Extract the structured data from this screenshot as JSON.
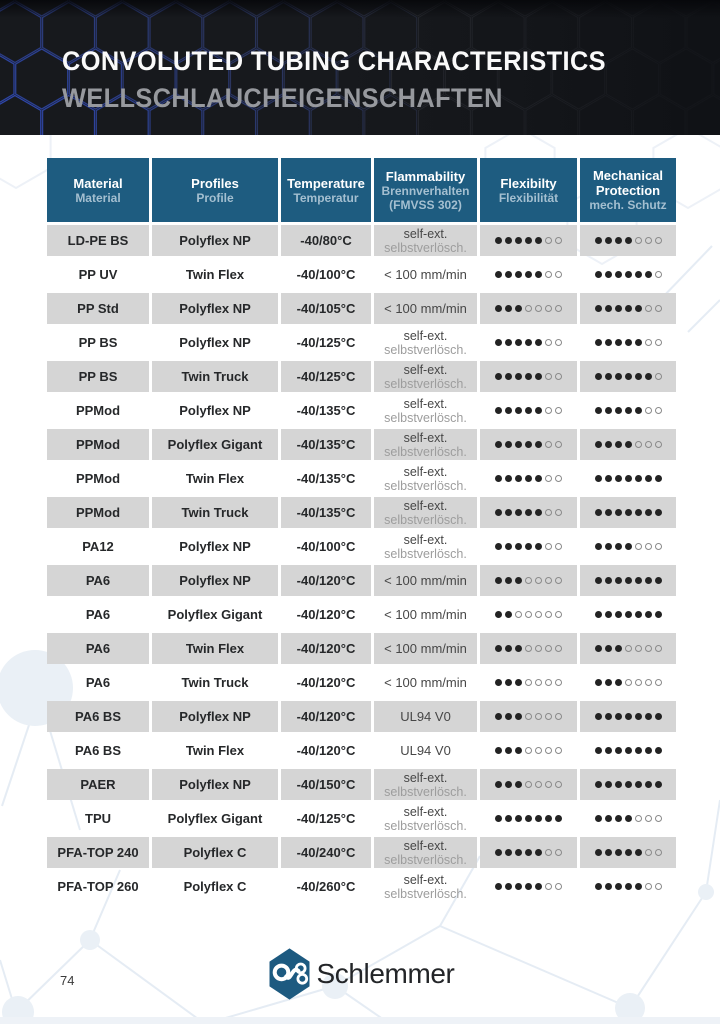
{
  "banner": {
    "title_en": "CONVOLUTED TUBING CHARACTERISTICS",
    "title_de": "WELLSCHLAUCHEIGENSCHAFTEN"
  },
  "table": {
    "columns": [
      {
        "id": "material",
        "top": [
          "Material"
        ],
        "bottom": [
          "Material"
        ]
      },
      {
        "id": "profiles",
        "top": [
          "Profiles"
        ],
        "bottom": [
          "Profile"
        ]
      },
      {
        "id": "temperature",
        "top": [
          "Temperature"
        ],
        "bottom": [
          "Temperatur"
        ]
      },
      {
        "id": "flammability",
        "top": [
          "Flammability"
        ],
        "bottom": [
          "Brennverhalten",
          "(FMVSS 302)"
        ]
      },
      {
        "id": "flexibility",
        "top": [
          "Flexibilty"
        ],
        "bottom": [
          "Flexibilität"
        ]
      },
      {
        "id": "mechanical",
        "top": [
          "Mechanical",
          "Protection"
        ],
        "bottom": [
          "mech. Schutz"
        ]
      }
    ],
    "rating_max": 7,
    "rows": [
      {
        "material": "LD-PE BS",
        "profile": "Polyflex NP",
        "temperature": "-40/80°C",
        "flammability": [
          "self-ext.",
          "selbstverlösch."
        ],
        "flexibility": 5,
        "mechanical": 4
      },
      {
        "material": "PP UV",
        "profile": "Twin Flex",
        "temperature": "-40/100°C",
        "flammability": [
          "< 100 mm/min"
        ],
        "flexibility": 5,
        "mechanical": 6
      },
      {
        "material": "PP Std",
        "profile": "Polyflex NP",
        "temperature": "-40/105°C",
        "flammability": [
          "< 100 mm/min"
        ],
        "flexibility": 3,
        "mechanical": 5
      },
      {
        "material": "PP BS",
        "profile": "Polyflex NP",
        "temperature": "-40/125°C",
        "flammability": [
          "self-ext.",
          "selbstverlösch."
        ],
        "flexibility": 5,
        "mechanical": 5
      },
      {
        "material": "PP BS",
        "profile": "Twin Truck",
        "temperature": "-40/125°C",
        "flammability": [
          "self-ext.",
          "selbstverlösch."
        ],
        "flexibility": 5,
        "mechanical": 6
      },
      {
        "material": "PPMod",
        "profile": "Polyflex NP",
        "temperature": "-40/135°C",
        "flammability": [
          "self-ext.",
          "selbstverlösch."
        ],
        "flexibility": 5,
        "mechanical": 5
      },
      {
        "material": "PPMod",
        "profile": "Polyflex Gigant",
        "temperature": "-40/135°C",
        "flammability": [
          "self-ext.",
          "selbstverlösch."
        ],
        "flexibility": 5,
        "mechanical": 4
      },
      {
        "material": "PPMod",
        "profile": "Twin Flex",
        "temperature": "-40/135°C",
        "flammability": [
          "self-ext.",
          "selbstverlösch."
        ],
        "flexibility": 5,
        "mechanical": 7
      },
      {
        "material": "PPMod",
        "profile": "Twin Truck",
        "temperature": "-40/135°C",
        "flammability": [
          "self-ext.",
          "selbstverlösch."
        ],
        "flexibility": 5,
        "mechanical": 7
      },
      {
        "material": "PA12",
        "profile": "Polyflex NP",
        "temperature": "-40/100°C",
        "flammability": [
          "self-ext.",
          "selbstverlösch."
        ],
        "flexibility": 5,
        "mechanical": 4
      },
      {
        "material": "PA6",
        "profile": "Polyflex NP",
        "temperature": "-40/120°C",
        "flammability": [
          "< 100 mm/min"
        ],
        "flexibility": 3,
        "mechanical": 7
      },
      {
        "material": "PA6",
        "profile": "Polyflex Gigant",
        "temperature": "-40/120°C",
        "flammability": [
          "< 100 mm/min"
        ],
        "flexibility": 2,
        "mechanical": 7
      },
      {
        "material": "PA6",
        "profile": "Twin Flex",
        "temperature": "-40/120°C",
        "flammability": [
          "< 100 mm/min"
        ],
        "flexibility": 3,
        "mechanical": 3
      },
      {
        "material": "PA6",
        "profile": "Twin Truck",
        "temperature": "-40/120°C",
        "flammability": [
          "< 100 mm/min"
        ],
        "flexibility": 3,
        "mechanical": 3
      },
      {
        "material": "PA6 BS",
        "profile": "Polyflex NP",
        "temperature": "-40/120°C",
        "flammability": [
          "UL94 V0"
        ],
        "flexibility": 3,
        "mechanical": 7
      },
      {
        "material": "PA6 BS",
        "profile": "Twin Flex",
        "temperature": "-40/120°C",
        "flammability": [
          "UL94 V0"
        ],
        "flexibility": 3,
        "mechanical": 7
      },
      {
        "material": "PAER",
        "profile": "Polyflex NP",
        "temperature": "-40/150°C",
        "flammability": [
          "self-ext.",
          "selbstverlösch."
        ],
        "flexibility": 3,
        "mechanical": 7
      },
      {
        "material": "TPU",
        "profile": "Polyflex Gigant",
        "temperature": "-40/125°C",
        "flammability": [
          "self-ext.",
          "selbstverlösch."
        ],
        "flexibility": 7,
        "mechanical": 4
      },
      {
        "material": "PFA-TOP 240",
        "profile": "Polyflex C",
        "temperature": "-40/240°C",
        "flammability": [
          "self-ext.",
          "selbstverlösch."
        ],
        "flexibility": 5,
        "mechanical": 5
      },
      {
        "material": "PFA-TOP 260",
        "profile": "Polyflex C",
        "temperature": "-40/260°C",
        "flammability": [
          "self-ext.",
          "selbstverlösch."
        ],
        "flexibility": 5,
        "mechanical": 5
      }
    ]
  },
  "footer": {
    "page_number": "74",
    "logo_text": "Schlemmer"
  },
  "colors": {
    "table_header_bg": "#1e5c80",
    "table_header_subtext": "#a4bfd0",
    "row_alt_bg": "#d5d5d5",
    "banner_bg": "#17191d",
    "banner_hex_stroke": "#3150cf",
    "dot_filled": "#232323",
    "dot_empty_border": "#8a8a8a",
    "logo_blue": "#1d5a80"
  }
}
